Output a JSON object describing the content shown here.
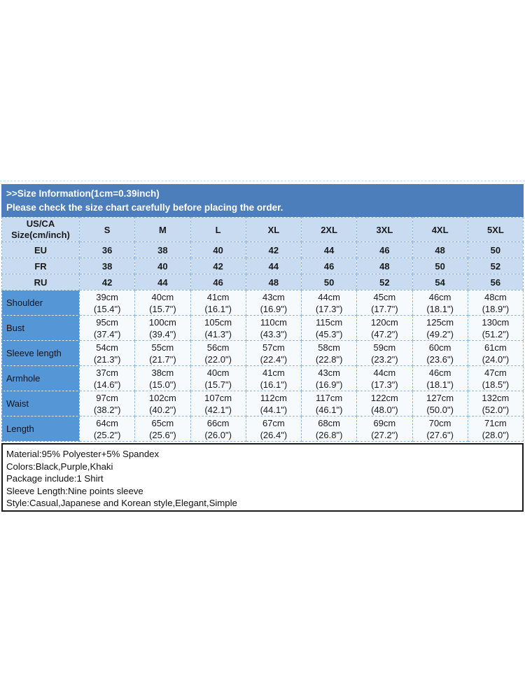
{
  "banner": {
    "line1": ">>Size Information(1cm=0.39inch)",
    "line2": "Please check the size chart carefully before placing the order."
  },
  "table": {
    "corner_line1": "US/CA",
    "corner_line2": "Size(cm/inch)",
    "size_columns": [
      "S",
      "M",
      "L",
      "XL",
      "2XL",
      "3XL",
      "4XL",
      "5XL"
    ],
    "region_rows": [
      {
        "label": "EU",
        "values": [
          "36",
          "38",
          "40",
          "42",
          "44",
          "46",
          "48",
          "50"
        ]
      },
      {
        "label": "FR",
        "values": [
          "38",
          "40",
          "42",
          "44",
          "46",
          "48",
          "50",
          "52"
        ]
      },
      {
        "label": "RU",
        "values": [
          "42",
          "44",
          "46",
          "48",
          "50",
          "52",
          "54",
          "56"
        ]
      }
    ],
    "measure_rows": [
      {
        "label": "Shoulder",
        "cells": [
          {
            "cm": "39cm",
            "inch": "(15.4\")"
          },
          {
            "cm": "40cm",
            "inch": "(15.7\")"
          },
          {
            "cm": "41cm",
            "inch": "(16.1\")"
          },
          {
            "cm": "43cm",
            "inch": "(16.9\")"
          },
          {
            "cm": "44cm",
            "inch": "(17.3\")"
          },
          {
            "cm": "45cm",
            "inch": "(17.7\")"
          },
          {
            "cm": "46cm",
            "inch": "(18.1\")"
          },
          {
            "cm": "48cm",
            "inch": "(18.9\")"
          }
        ]
      },
      {
        "label": "Bust",
        "cells": [
          {
            "cm": "95cm",
            "inch": "(37.4\")"
          },
          {
            "cm": "100cm",
            "inch": "(39.4\")"
          },
          {
            "cm": "105cm",
            "inch": "(41.3\")"
          },
          {
            "cm": "110cm",
            "inch": "(43.3\")"
          },
          {
            "cm": "115cm",
            "inch": "(45.3\")"
          },
          {
            "cm": "120cm",
            "inch": "(47.2\")"
          },
          {
            "cm": "125cm",
            "inch": "(49.2\")"
          },
          {
            "cm": "130cm",
            "inch": "(51.2\")"
          }
        ]
      },
      {
        "label": "Sleeve length",
        "cells": [
          {
            "cm": "54cm",
            "inch": "(21.3\")"
          },
          {
            "cm": "55cm",
            "inch": "(21.7\")"
          },
          {
            "cm": "56cm",
            "inch": "(22.0\")"
          },
          {
            "cm": "57cm",
            "inch": "(22.4\")"
          },
          {
            "cm": "58cm",
            "inch": "(22.8\")"
          },
          {
            "cm": "59cm",
            "inch": "(23.2\")"
          },
          {
            "cm": "60cm",
            "inch": "(23.6\")"
          },
          {
            "cm": "61cm",
            "inch": "(24.0\")"
          }
        ]
      },
      {
        "label": "Armhole",
        "cells": [
          {
            "cm": "37cm",
            "inch": "(14.6\")"
          },
          {
            "cm": "38cm",
            "inch": "(15.0\")"
          },
          {
            "cm": "40cm",
            "inch": "(15.7\")"
          },
          {
            "cm": "41cm",
            "inch": "(16.1\")"
          },
          {
            "cm": "43cm",
            "inch": "(16.9\")"
          },
          {
            "cm": "44cm",
            "inch": "(17.3\")"
          },
          {
            "cm": "46cm",
            "inch": "(18.1\")"
          },
          {
            "cm": "47cm",
            "inch": "(18.5\")"
          }
        ]
      },
      {
        "label": "Waist",
        "cells": [
          {
            "cm": "97cm",
            "inch": "(38.2\")"
          },
          {
            "cm": "102cm",
            "inch": "(40.2\")"
          },
          {
            "cm": "107cm",
            "inch": "(42.1\")"
          },
          {
            "cm": "112cm",
            "inch": "(44.1\")"
          },
          {
            "cm": "117cm",
            "inch": "(46.1\")"
          },
          {
            "cm": "122cm",
            "inch": "(48.0\")"
          },
          {
            "cm": "127cm",
            "inch": "(50.0\")"
          },
          {
            "cm": "132cm",
            "inch": "(52.0\")"
          }
        ]
      },
      {
        "label": "Length",
        "cells": [
          {
            "cm": "64cm",
            "inch": "(25.2\")"
          },
          {
            "cm": "65cm",
            "inch": "(25.6\")"
          },
          {
            "cm": "66cm",
            "inch": "(26.0\")"
          },
          {
            "cm": "67cm",
            "inch": "(26.4\")"
          },
          {
            "cm": "68cm",
            "inch": "(26.8\")"
          },
          {
            "cm": "69cm",
            "inch": "(27.2\")"
          },
          {
            "cm": "70cm",
            "inch": "(27.6\")"
          },
          {
            "cm": "71cm",
            "inch": "(28.0\")"
          }
        ]
      }
    ]
  },
  "details": {
    "lines": [
      "Material:95% Polyester+5% Spandex",
      "Colors:Black,Purple,Khaki",
      "Package include:1 Shirt",
      "Sleeve Length:Nine points sleeve",
      "Style:Casual,Japanese and Korean style,Elegant,Simple"
    ]
  },
  "colors": {
    "banner_bg": "#4D7EBC",
    "header_bg": "#C9DBF0",
    "label_col_bg": "#5496D6",
    "cell_bg": "#F7FAFD",
    "grid_line": "#8FB8DE",
    "details_border": "#1A1A1A"
  }
}
